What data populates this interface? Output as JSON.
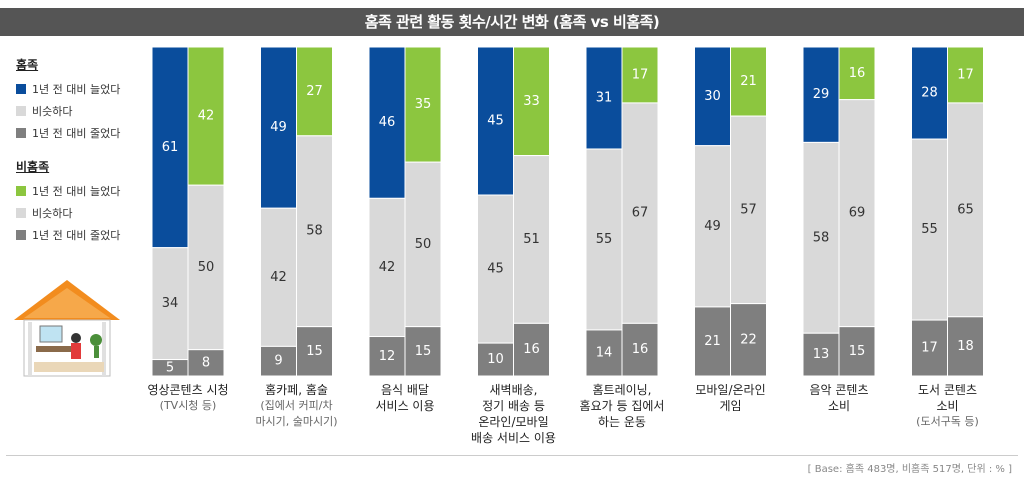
{
  "title": "홈족 관련 활동 횟수/시간 변화 (홈족 vs 비홈족)",
  "legend": {
    "home": {
      "title": "홈족",
      "items": [
        {
          "label": "1년 전 대비 늘었다",
          "color": "#0a4d9c"
        },
        {
          "label": "비슷하다",
          "color": "#d9d9d9"
        },
        {
          "label": "1년 전 대비 줄었다",
          "color": "#7f7f7f"
        }
      ]
    },
    "nonhome": {
      "title": "비홈족",
      "items": [
        {
          "label": "1년 전 대비 늘었다",
          "color": "#8cc63f"
        },
        {
          "label": "비슷하다",
          "color": "#d9d9d9"
        },
        {
          "label": "1년 전 대비 줄었다",
          "color": "#7f7f7f"
        }
      ]
    }
  },
  "chart_data": {
    "type": "bar",
    "stacked": true,
    "categories": [
      {
        "label": [
          "영상콘텐츠 시청"
        ],
        "sub": [
          "(TV시청 등)"
        ]
      },
      {
        "label": [
          "홈카페, 홈술"
        ],
        "sub": [
          "(집에서 커피/차",
          "마시기, 술마시기)"
        ]
      },
      {
        "label": [
          "음식 배달",
          "서비스 이용"
        ],
        "sub": []
      },
      {
        "label": [
          "새벽배송,",
          "정기 배송 등",
          "온라인/모바일",
          "배송 서비스 이용"
        ],
        "sub": []
      },
      {
        "label": [
          "홈트레이닝,",
          "홈요가 등 집에서",
          "하는 운동"
        ],
        "sub": []
      },
      {
        "label": [
          "모바일/온라인",
          "게임"
        ],
        "sub": []
      },
      {
        "label": [
          "음악 콘텐츠",
          "소비"
        ],
        "sub": []
      },
      {
        "label": [
          "도서 콘텐츠",
          "소비"
        ],
        "sub": [
          "(도서구독 등)"
        ]
      }
    ],
    "series": [
      {
        "group": "홈족",
        "increased": [
          61,
          49,
          46,
          45,
          31,
          30,
          29,
          28
        ],
        "similar": [
          34,
          42,
          42,
          45,
          55,
          49,
          58,
          55
        ],
        "decreased": [
          5,
          9,
          12,
          10,
          14,
          21,
          13,
          17
        ]
      },
      {
        "group": "비홈족",
        "increased": [
          42,
          27,
          35,
          33,
          17,
          21,
          16,
          17
        ],
        "similar": [
          50,
          58,
          50,
          51,
          67,
          57,
          69,
          65
        ],
        "decreased": [
          8,
          15,
          15,
          16,
          16,
          22,
          15,
          18
        ]
      }
    ],
    "colors": {
      "home_increased": "#0a4d9c",
      "nonhome_increased": "#8cc63f",
      "similar": "#d9d9d9",
      "decreased": "#7f7f7f"
    },
    "ylim": [
      0,
      100
    ]
  },
  "base_note": "[ Base: 홈족 483명, 비홈족 517명, 단위 : % ]"
}
